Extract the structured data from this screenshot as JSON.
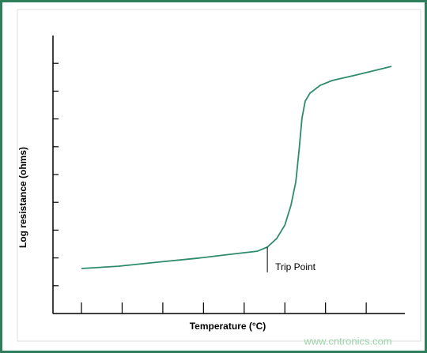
{
  "chart_data": {
    "type": "line",
    "xlabel": "Temperature (°C)",
    "ylabel": "Log resistance (ohms)",
    "x": [
      0.7,
      1.61,
      2.59,
      3.56,
      4.53,
      5.02,
      5.27,
      5.5,
      5.7,
      5.85,
      5.97,
      6.05,
      6.12,
      6.2,
      6.32,
      6.57,
      6.86,
      7.45,
      8.32
    ],
    "series": [
      {
        "color": "#2e8b6e",
        "values": [
          1.62,
          1.7,
          1.85,
          1.99,
          2.16,
          2.24,
          2.39,
          2.7,
          3.18,
          3.89,
          4.74,
          5.88,
          7.02,
          7.64,
          7.93,
          8.21,
          8.38,
          8.58,
          8.89
        ]
      }
    ],
    "xlim": [
      0,
      9
    ],
    "ylim": [
      0,
      10
    ],
    "xticks": [
      0.7,
      1.7,
      2.7,
      3.7,
      4.7,
      5.7,
      6.7,
      7.7
    ],
    "yticks": [
      1,
      2,
      3,
      4,
      5,
      6,
      7,
      8,
      9
    ],
    "annotation": {
      "text": "Trip Point",
      "x": 5.27
    },
    "watermark": "www.cntronics.com"
  }
}
